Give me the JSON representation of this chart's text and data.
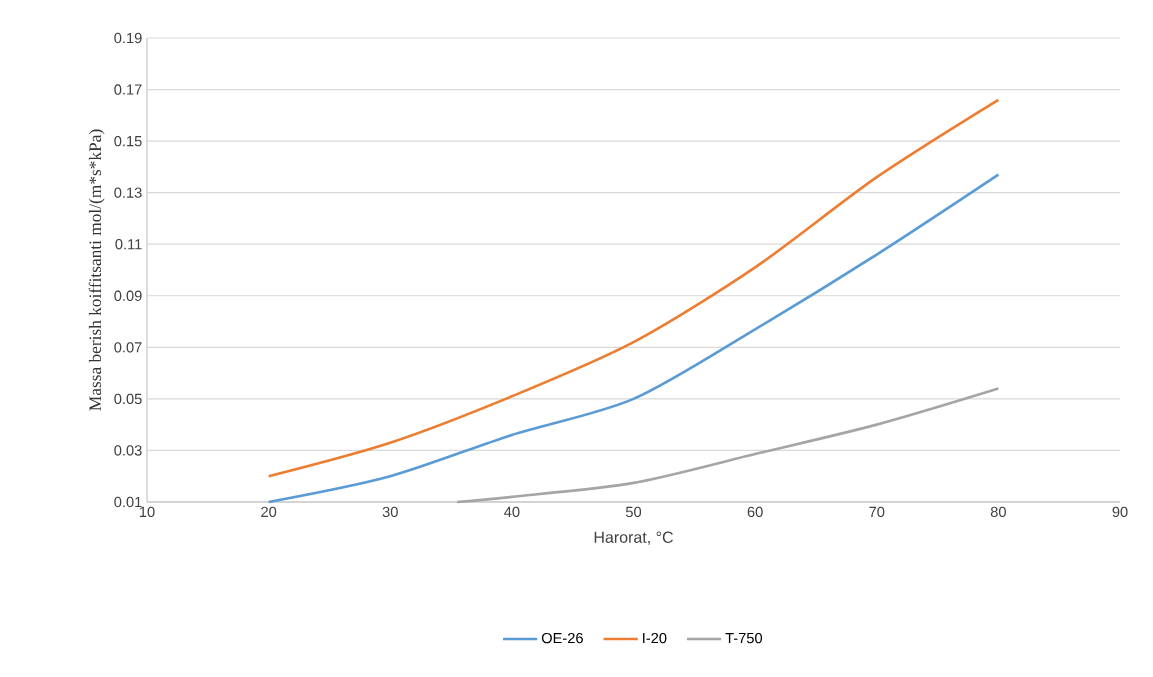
{
  "chart_data": {
    "type": "line",
    "xlabel": "Harorat, °C",
    "ylabel": "Massa berish koiffitsanti mol/(m*s*kPa)",
    "xlim": [
      10,
      90
    ],
    "xticks": [
      10,
      20,
      30,
      40,
      50,
      60,
      70,
      80,
      90
    ],
    "ylim": [
      0.01,
      0.19
    ],
    "yticks": [
      0.01,
      0.03,
      0.05,
      0.07,
      0.09,
      0.11,
      0.13,
      0.15,
      0.17,
      0.19
    ],
    "grid": "y",
    "legend": "bottom",
    "line_style": "solid",
    "series": [
      {
        "name": "OE-26",
        "color": "#5b9bd5",
        "x": [
          20,
          30,
          40,
          50,
          60,
          70,
          80
        ],
        "values": [
          0.01,
          0.02,
          0.036,
          0.05,
          0.077,
          0.106,
          0.137
        ]
      },
      {
        "name": "I-20",
        "color": "#ed7d31",
        "x": [
          20,
          30,
          40,
          50,
          60,
          70,
          80
        ],
        "values": [
          0.02,
          0.033,
          0.051,
          0.072,
          0.101,
          0.136,
          0.166
        ]
      },
      {
        "name": "T-750",
        "color": "#a5a5a5",
        "x": [
          35.5,
          40,
          50,
          60,
          70,
          80
        ],
        "values": [
          0.01,
          0.012,
          0.0174,
          0.0286,
          0.04,
          0.054
        ]
      }
    ]
  }
}
